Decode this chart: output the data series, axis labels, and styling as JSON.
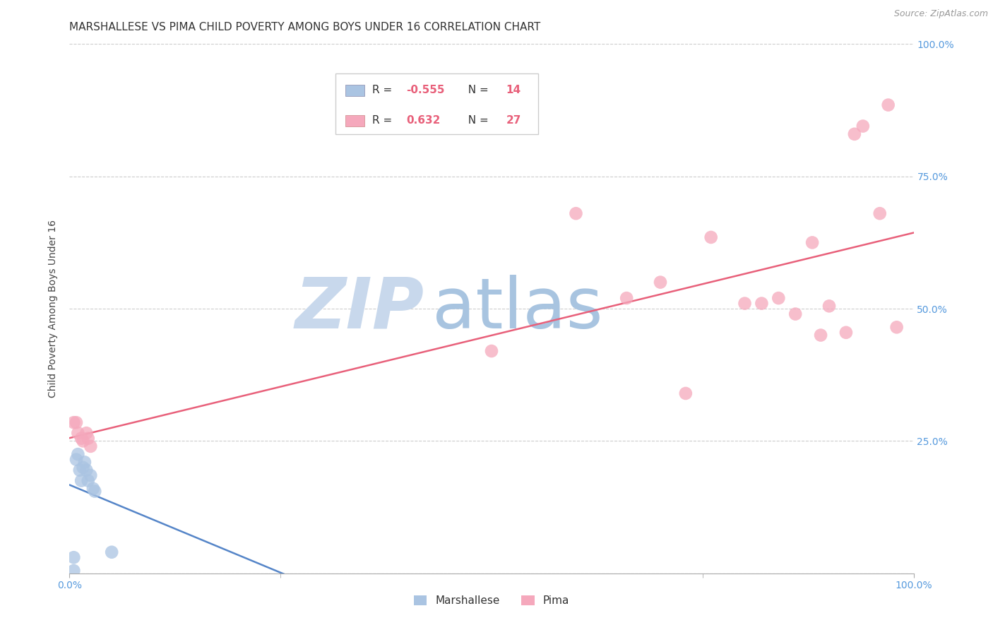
{
  "title": "MARSHALLESE VS PIMA CHILD POVERTY AMONG BOYS UNDER 16 CORRELATION CHART",
  "source": "Source: ZipAtlas.com",
  "ylabel": "Child Poverty Among Boys Under 16",
  "xlim": [
    0,
    1
  ],
  "ylim": [
    0,
    1
  ],
  "xticklabels": [
    "0.0%",
    "100.0%"
  ],
  "ytick_positions": [
    0.0,
    0.25,
    0.5,
    0.75,
    1.0
  ],
  "yticklabels_right": [
    "",
    "25.0%",
    "50.0%",
    "75.0%",
    "100.0%"
  ],
  "marshallese_color": "#aac4e2",
  "pima_color": "#f5a8bc",
  "marshallese_line_color": "#5585c8",
  "pima_line_color": "#e8607a",
  "marshallese_r": "-0.555",
  "marshallese_n": "14",
  "pima_r": "0.632",
  "pima_n": "27",
  "watermark_zip": "ZIP",
  "watermark_atlas": "atlas",
  "watermark_color_zip": "#c8d8ec",
  "watermark_color_atlas": "#a8c4e0",
  "background_color": "#ffffff",
  "grid_color": "#cccccc",
  "marshallese_x": [
    0.005,
    0.005,
    0.008,
    0.01,
    0.012,
    0.014,
    0.016,
    0.018,
    0.02,
    0.022,
    0.025,
    0.028,
    0.03,
    0.05
  ],
  "marshallese_y": [
    0.005,
    0.03,
    0.215,
    0.225,
    0.195,
    0.175,
    0.2,
    0.21,
    0.195,
    0.175,
    0.185,
    0.16,
    0.155,
    0.04
  ],
  "pima_x": [
    0.005,
    0.008,
    0.01,
    0.014,
    0.016,
    0.02,
    0.022,
    0.025,
    0.5,
    0.6,
    0.66,
    0.7,
    0.73,
    0.76,
    0.8,
    0.82,
    0.84,
    0.86,
    0.88,
    0.89,
    0.9,
    0.92,
    0.93,
    0.94,
    0.96,
    0.97,
    0.98
  ],
  "pima_y": [
    0.285,
    0.285,
    0.265,
    0.255,
    0.25,
    0.265,
    0.255,
    0.24,
    0.42,
    0.68,
    0.52,
    0.55,
    0.34,
    0.635,
    0.51,
    0.51,
    0.52,
    0.49,
    0.625,
    0.45,
    0.505,
    0.455,
    0.83,
    0.845,
    0.68,
    0.885,
    0.465
  ],
  "title_fontsize": 11,
  "axis_label_fontsize": 10,
  "tick_fontsize": 10,
  "source_fontsize": 9,
  "scatter_size": 180
}
